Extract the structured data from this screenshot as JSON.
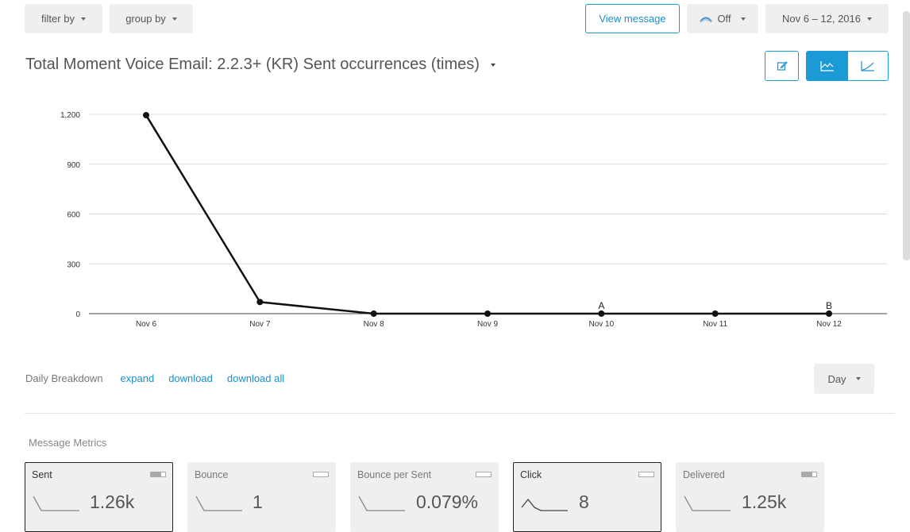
{
  "toolbar": {
    "filter_label": "filter by",
    "group_label": "group by",
    "view_message_label": "View message",
    "compare_label": "Off",
    "date_range_label": "Nov 6 – 12, 2016"
  },
  "title": "Total Moment Voice Email: 2.2.3+ (KR) Sent occurrences (times)",
  "icons": {
    "edit": "edit-icon",
    "line_chart": "line-chart-icon",
    "area_chart": "area-chart-icon",
    "compare": "compare-icon"
  },
  "chart_data": {
    "type": "line",
    "categories": [
      "Nov 6",
      "Nov 7",
      "Nov 8",
      "Nov 9",
      "Nov 10",
      "Nov 11",
      "Nov 12"
    ],
    "series": [
      {
        "values": [
          1195,
          70,
          0,
          0,
          0,
          0,
          0
        ]
      }
    ],
    "ylim": [
      0,
      1200
    ],
    "yticks": [
      0,
      300,
      600,
      900,
      1200
    ],
    "ytick_labels": [
      "0",
      "300",
      "600",
      "900",
      "1,200"
    ],
    "annotations": [
      {
        "x": "Nov 10",
        "text": "A"
      },
      {
        "x": "Nov 12",
        "text": "B"
      }
    ],
    "grid": true,
    "line_color": "#111111"
  },
  "breakdown": {
    "label": "Daily Breakdown",
    "expand": "expand",
    "download": "download",
    "download_all": "download all",
    "interval": "Day"
  },
  "metrics_label": "Message Metrics",
  "metrics": [
    {
      "name": "Sent",
      "value": "1.26k",
      "active": true,
      "toggle_on": true
    },
    {
      "name": "Bounce",
      "value": "1",
      "active": false,
      "toggle_on": false
    },
    {
      "name": "Bounce per Sent",
      "value": "0.079%",
      "active": false,
      "toggle_on": false
    },
    {
      "name": "Click",
      "value": "8",
      "active": true,
      "toggle_on": false
    },
    {
      "name": "Delivered",
      "value": "1.25k",
      "active": false,
      "toggle_on": true
    }
  ],
  "colors": {
    "accent": "#1b9ad6",
    "link": "#1b8fcc"
  }
}
